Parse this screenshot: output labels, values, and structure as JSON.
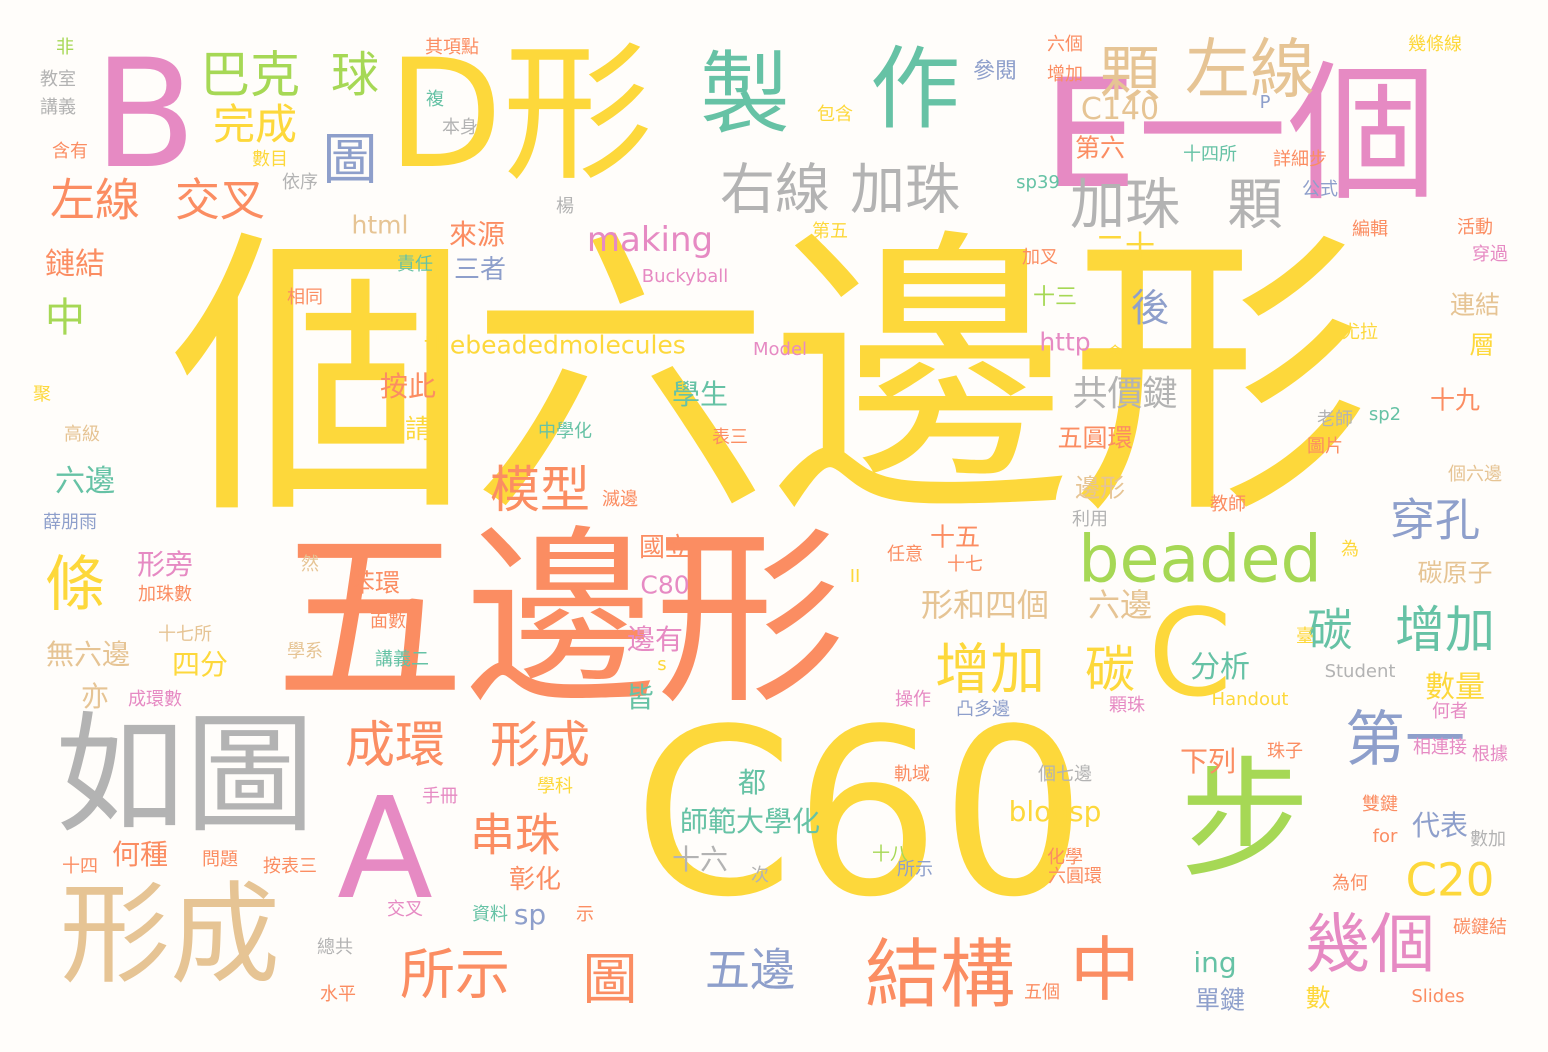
{
  "palette": {
    "yellow": "#fdd83b",
    "orange": "#fb8d62",
    "tan": "#e6c494",
    "pink": "#e68ac3",
    "green": "#a6d855",
    "teal": "#66c2a5",
    "blue": "#8e9fcb",
    "gray": "#b3b3b3"
  },
  "words": [
    "個六邊形",
    "五邊形",
    "C60",
    "B",
    "D形",
    "E一個",
    "如圖",
    "A",
    "形成",
    "步",
    "C",
    "製",
    "作",
    "顆",
    "左線",
    "巴克",
    "球",
    "圖",
    "完成",
    "左線",
    "交叉",
    "右線",
    "加珠",
    "加珠",
    "顆",
    "C140",
    "beaded",
    "條",
    "模型",
    "穿孔",
    "碳",
    "增加",
    "增加",
    "碳",
    "成環",
    "形成",
    "第一",
    "串珠",
    "結構",
    "中",
    "幾個",
    "所示",
    "圖",
    "五邊",
    "C20",
    "共價鍵",
    "making",
    "thebeadedmolecules",
    "其項點",
    "六個",
    "增加",
    "幾條線",
    "非",
    "教室",
    "講義",
    "含有",
    "數目",
    "複",
    "本身",
    "包含",
    "參閱",
    "第六",
    "十四所",
    "詳細步",
    "P",
    "sp39",
    "公式",
    "依序",
    "楊",
    "html",
    "來源",
    "第五",
    "二十",
    "編輯",
    "活動",
    "穿過",
    "鏈結",
    "責任",
    "三者",
    "Buckyball",
    "加叉",
    "相同",
    "中",
    "十三",
    "後",
    "連結",
    "http",
    "層",
    "Model",
    "會",
    "尤拉",
    "按此",
    "學生",
    "請",
    "中學化",
    "表三",
    "老師",
    "sp2",
    "十九",
    "聚",
    "高級",
    "五圓環",
    "圖片",
    "六邊",
    "滅邊",
    "邊形",
    "教師",
    "個六邊",
    "薛朋雨",
    "利用",
    "國立",
    "十五",
    "十七",
    "任意",
    "為",
    "碳原子",
    "形旁",
    "然",
    "苯環",
    "C80",
    "II",
    "加珠數",
    "形和四個",
    "六邊",
    "無六邊",
    "十七所",
    "面數",
    "學系",
    "邊有",
    "臺",
    "四分",
    "講義二",
    "分析",
    "s",
    "Student",
    "亦",
    "成環數",
    "皆",
    "操作",
    "凸多邊",
    "顆珠",
    "Handout",
    "數量",
    "何者",
    "相連接",
    "根據",
    "都",
    "軌域",
    "個七邊",
    "下列",
    "珠子",
    "手冊",
    "學科",
    "師範大學化",
    "blogsp",
    "雙鍵",
    "代表",
    "for",
    "數加",
    "何種",
    "十六",
    "十八",
    "化學",
    "十四",
    "問題",
    "按表三",
    "所示",
    "次",
    "彰化",
    "六圓環",
    "為何",
    "碳鍵結",
    "資料",
    "sp",
    "示",
    "交叉",
    "單鍵",
    "ing",
    "總共",
    "水平",
    "五個",
    "數",
    "Slides",
    "副教授"
  ]
}
